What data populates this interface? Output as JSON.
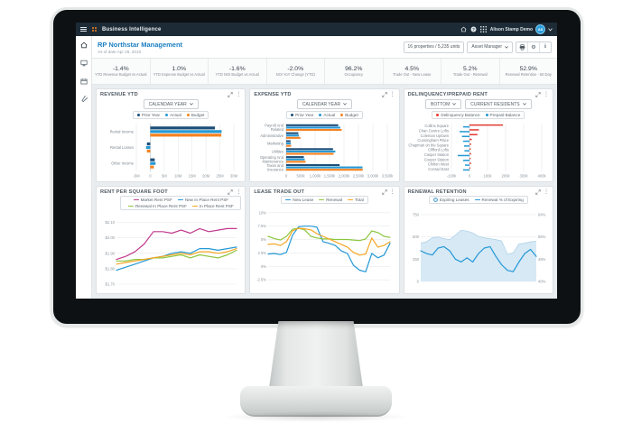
{
  "topbar": {
    "app_title": "Business Intelligence",
    "user_name": "Alison Stamp Demo",
    "avatar_initials": "AS"
  },
  "icons": {
    "gear": "⚙",
    "kebab": "⋮",
    "info": "i"
  },
  "sidebar": {
    "items": [
      "home-icon",
      "monitor-icon",
      "calendar-icon",
      "wrench-icon"
    ]
  },
  "header": {
    "title": "RP Northstar Management",
    "as_of": "As of date Apr 28, 2019",
    "properties_badge": "16 properties / 5,235 units",
    "role_selector": "Asset Manager"
  },
  "kpis": [
    {
      "value": "-1.4%",
      "label": "YTD Revenue Budget vs Actual"
    },
    {
      "value": "1.0%",
      "label": "YTD Expense Budget vs Actual"
    },
    {
      "value": "-1.6%",
      "label": "YTD NOI Budget vs Actual"
    },
    {
      "value": "-2.0%",
      "label": "NOI YoY Change (YTD)"
    },
    {
      "value": "96.2%",
      "label": "Occupancy"
    },
    {
      "value": "4.5%",
      "label": "Trade Out - New Lease"
    },
    {
      "value": "5.2%",
      "label": "Trade Out - Renewal"
    },
    {
      "value": "52.9%",
      "label": "Renewal Retention - 60 Day"
    }
  ],
  "chart_data": [
    {
      "id": "revenue-ytd",
      "title": "REVENUE YTD",
      "type": "hbar",
      "controls": [
        "CALENDAR YEAR"
      ],
      "legend": [
        {
          "label": "Prior Year",
          "color": "#1c4e78",
          "marker": "dot"
        },
        {
          "label": "Actual",
          "color": "#2498d5",
          "marker": "dot"
        },
        {
          "label": "Budget",
          "color": "#f58220",
          "marker": "dot"
        }
      ],
      "categories": [
        [
          "Rental Income"
        ],
        [
          "Rental Losses"
        ],
        [
          "Other Income"
        ]
      ],
      "series": [
        {
          "name": "Prior Year",
          "color": "#1c4e78",
          "values": [
            23.2,
            -1.2,
            1.6
          ]
        },
        {
          "name": "Actual",
          "color": "#2498d5",
          "values": [
            25.6,
            -1.5,
            1.9
          ]
        },
        {
          "name": "Budget",
          "color": "#f58220",
          "values": [
            25.5,
            -1.2,
            1.3
          ]
        }
      ],
      "xlim": [
        -5,
        30
      ],
      "xticks": [
        {
          "v": -5,
          "l": "-5M"
        },
        {
          "v": 0,
          "l": "0"
        },
        {
          "v": 5,
          "l": "5M"
        },
        {
          "v": 10,
          "l": "10M"
        },
        {
          "v": 15,
          "l": "15M"
        },
        {
          "v": 20,
          "l": "20M"
        },
        {
          "v": 25,
          "l": "25M"
        },
        {
          "v": 30,
          "l": "30M"
        }
      ],
      "margins": {
        "l": 40,
        "r": 8,
        "t": 3,
        "b": 8
      },
      "bar_h": 3.2,
      "bar_gap": 0.8
    },
    {
      "id": "expense-ytd",
      "title": "EXPENSE YTD",
      "type": "hbar",
      "controls": [
        "CALENDAR YEAR"
      ],
      "legend": [
        {
          "label": "Prior Year",
          "color": "#1c4e78",
          "marker": "dot"
        },
        {
          "label": "Actual",
          "color": "#2498d5",
          "marker": "dot"
        },
        {
          "label": "Budget",
          "color": "#f58220",
          "marker": "dot"
        }
      ],
      "categories": [
        [
          "Payroll And",
          "Related"
        ],
        [
          "Administrative"
        ],
        [
          "Marketing"
        ],
        [
          "Utilities"
        ],
        [
          "Operating And",
          "Maintenance"
        ],
        [
          "Taxes and",
          "Insurance"
        ]
      ],
      "series": [
        {
          "name": "Prior Year",
          "color": "#1c4e78",
          "values": [
            1800,
            420,
            150,
            1620,
            610,
            1850
          ]
        },
        {
          "name": "Actual",
          "color": "#2498d5",
          "values": [
            1870,
            440,
            160,
            1700,
            640,
            2640
          ]
        },
        {
          "name": "Budget",
          "color": "#f58220",
          "values": [
            1920,
            490,
            170,
            1640,
            670,
            2650
          ]
        }
      ],
      "xlim": [
        0,
        3500
      ],
      "xticks": [
        {
          "v": 0,
          "l": "0"
        },
        {
          "v": 500,
          "l": "500k"
        },
        {
          "v": 1000,
          "l": "1,000k"
        },
        {
          "v": 1500,
          "l": "1,500k"
        },
        {
          "v": 2000,
          "l": "2,000k"
        },
        {
          "v": 2500,
          "l": "2,500k"
        },
        {
          "v": 3000,
          "l": "3,000k"
        },
        {
          "v": 3500,
          "l": "3,500k"
        }
      ],
      "margins": {
        "l": 36,
        "r": 8,
        "t": 3,
        "b": 8
      },
      "bar_h": 2.1,
      "bar_gap": 0.5
    },
    {
      "id": "delinquency-prepaid",
      "title": "DELINQUENCY/PREPAID RENT",
      "type": "hbar",
      "controls": [
        "BOTTOM",
        "CURRENT RESIDENTS"
      ],
      "legend": [
        {
          "label": "Delinquency Balance",
          "color": "#e23b33",
          "marker": "dot"
        },
        {
          "label": "Prepaid Balance",
          "color": "#2498d5",
          "marker": "dot"
        }
      ],
      "categories": [
        [
          "Collins Square"
        ],
        [
          "Chan Centre Lofts"
        ],
        [
          "Coleman Uptown"
        ],
        [
          "Cunningham Place"
        ],
        [
          "Chapman on the Square"
        ],
        [
          "Clifford Lofts"
        ],
        [
          "Casper Station"
        ],
        [
          "Cooper Station"
        ],
        [
          "Chilton West"
        ],
        [
          "Conrad East"
        ]
      ],
      "series": [
        {
          "name": "Delinquency Balance",
          "color": "#e23b33",
          "values": [
            185,
            52,
            44,
            13,
            9,
            7,
            9,
            6,
            9,
            5
          ]
        },
        {
          "name": "Prepaid Balance",
          "color": "#2498d5",
          "values": [
            -35,
            -55,
            -42,
            -35,
            -30,
            -28,
            -65,
            -35,
            -25,
            -35
          ]
        }
      ],
      "xlim": [
        -100,
        400
      ],
      "xticks": [
        {
          "v": -100,
          "l": "-100k"
        },
        {
          "v": 0,
          "l": "0"
        },
        {
          "v": 100,
          "l": "100k"
        },
        {
          "v": 200,
          "l": "200k"
        },
        {
          "v": 300,
          "l": "300k"
        },
        {
          "v": 400,
          "l": "400k"
        }
      ],
      "margins": {
        "l": 48,
        "r": 8,
        "t": 3,
        "b": 8
      },
      "bar_h": 1.5,
      "bar_gap": 0.5
    },
    {
      "id": "rent-per-square-foot",
      "title": "RENT PER SQUARE FOOT",
      "type": "line",
      "controls": [],
      "legend": [
        {
          "label": "Market Rent PSF",
          "color": "#c0398e",
          "marker": "line"
        },
        {
          "label": "New In Place Rent PSF",
          "color": "#2498d5",
          "marker": "line"
        },
        {
          "label": "Renewal In Place Rent PSF",
          "color": "#8cc63f",
          "marker": "line"
        },
        {
          "label": "In Place Rent PSF",
          "color": "#f5a623",
          "marker": "line"
        }
      ],
      "ylim": [
        1.7,
        2.15
      ],
      "yticks": [
        {
          "v": 2.1,
          "l": "$2.10"
        },
        {
          "v": 2.0,
          "l": "$2.00"
        },
        {
          "v": 1.9,
          "l": "$1.90"
        },
        {
          "v": 1.8,
          "l": "$1.80"
        },
        {
          "v": 1.7,
          "l": "$1.70"
        }
      ],
      "series": [
        {
          "name": "Market Rent PSF",
          "color": "#c0398e",
          "values": [
            1.86,
            1.88,
            1.91,
            1.96,
            2.04,
            2.04,
            2.03,
            2.05,
            2.03,
            2.06,
            2.04,
            2.05,
            2.06,
            2.06
          ]
        },
        {
          "name": "New In Place Rent PSF",
          "color": "#2498d5",
          "values": [
            1.79,
            1.81,
            1.83,
            1.85,
            1.87,
            1.88,
            1.9,
            1.91,
            1.9,
            1.93,
            1.93,
            1.92,
            1.93,
            1.94
          ]
        },
        {
          "name": "Renewal In Place Rent PSF",
          "color": "#8cc63f",
          "values": [
            1.85,
            1.85,
            1.86,
            1.86,
            1.87,
            1.87,
            1.88,
            1.89,
            1.87,
            1.89,
            1.88,
            1.87,
            1.89,
            1.92
          ]
        },
        {
          "name": "In Place Rent PSF",
          "color": "#f5a623",
          "values": [
            1.83,
            1.84,
            1.85,
            1.86,
            1.87,
            1.88,
            1.89,
            1.9,
            1.89,
            1.91,
            1.91,
            1.9,
            1.91,
            1.93
          ]
        }
      ],
      "margins": {
        "l": 18,
        "r": 5,
        "t": 3,
        "b": 4
      }
    },
    {
      "id": "lease-trade-out",
      "title": "LEASE TRADE OUT",
      "type": "line",
      "controls": [],
      "legend": [
        {
          "label": "New Lease",
          "color": "#2498d5",
          "marker": "line"
        },
        {
          "label": "Renewal",
          "color": "#8cc63f",
          "marker": "line"
        },
        {
          "label": "Total",
          "color": "#f5a623",
          "marker": "line"
        }
      ],
      "ylim": [
        -2.8,
        10.8
      ],
      "yticks": [
        {
          "v": 10,
          "l": "10%"
        },
        {
          "v": 7.5,
          "l": "7.5%"
        },
        {
          "v": 5,
          "l": "5%"
        },
        {
          "v": 2.5,
          "l": "2.5%"
        },
        {
          "v": 0,
          "l": "0%"
        },
        {
          "v": -2.5,
          "l": "-2.5%"
        }
      ],
      "series": [
        {
          "name": "New Lease",
          "color": "#2498d5",
          "values": [
            2.3,
            2.4,
            2.2,
            2.6,
            5.8,
            7.4,
            7.5,
            7.5,
            7.3,
            4.6,
            4.3,
            3.9,
            2.9,
            2.4,
            0.2,
            -0.7,
            -1.0,
            2.4,
            1.6,
            2.1,
            4.3
          ]
        },
        {
          "name": "Renewal",
          "color": "#8cc63f",
          "values": [
            5.6,
            5.2,
            4.9,
            5.6,
            6.9,
            7.1,
            6.8,
            5.6,
            5.3,
            5.1,
            5.1,
            5.0,
            5.0,
            5.0,
            4.9,
            4.8,
            5.1,
            6.6,
            6.3,
            5.6,
            5.4
          ]
        },
        {
          "name": "Total",
          "color": "#f5a623",
          "values": [
            4.1,
            4.2,
            3.9,
            4.6,
            6.6,
            7.1,
            7.0,
            6.8,
            6.1,
            5.6,
            5.1,
            4.6,
            4.1,
            3.6,
            2.6,
            2.1,
            2.3,
            5.3,
            3.6,
            3.9,
            4.6
          ]
        }
      ],
      "margins": {
        "l": 16,
        "r": 5,
        "t": 3,
        "b": 4
      }
    },
    {
      "id": "renewal-retention",
      "title": "RENEWAL RETENTION",
      "type": "line",
      "controls": [],
      "legend": [
        {
          "label": "Expiring Leases",
          "color": "#d6e9f5",
          "border": "#5ba3cf",
          "marker": "dot-outline"
        },
        {
          "label": "Renewal % of Expiring",
          "color": "#2498d5",
          "marker": "line"
        }
      ],
      "ylim": [
        0,
        820
      ],
      "right_ylim": [
        40,
        66.24
      ],
      "yticks": [
        {
          "v": 750,
          "l": "750"
        },
        {
          "v": 500,
          "l": "500"
        },
        {
          "v": 250,
          "l": "250"
        },
        {
          "v": 0,
          "l": "0"
        }
      ],
      "right_yticks": [
        {
          "v": 64,
          "l": "64%"
        },
        {
          "v": 56,
          "l": "56%"
        },
        {
          "v": 48,
          "l": "48%"
        },
        {
          "v": 40,
          "l": "40%"
        }
      ],
      "series": [
        {
          "name": "Expiring Leases",
          "color": "#d6e9f5",
          "stroke": "#aacfe6",
          "area": true,
          "axis": "left",
          "values": [
            430,
            445,
            490,
            500,
            480,
            470,
            520,
            575,
            565,
            545,
            505,
            490,
            480,
            470,
            455,
            305,
            320,
            420,
            430,
            445,
            450
          ]
        },
        {
          "name": "Renewal % of Expiring",
          "color": "#2498d5",
          "axis": "right",
          "values": [
            51,
            50,
            49.5,
            52,
            52.5,
            51,
            48,
            47,
            48.5,
            47,
            50,
            52,
            52.5,
            49,
            46,
            44,
            43.5,
            47,
            50,
            51.5,
            49
          ]
        }
      ],
      "margins": {
        "l": 14,
        "r": 14,
        "t": 3,
        "b": 4
      }
    }
  ]
}
